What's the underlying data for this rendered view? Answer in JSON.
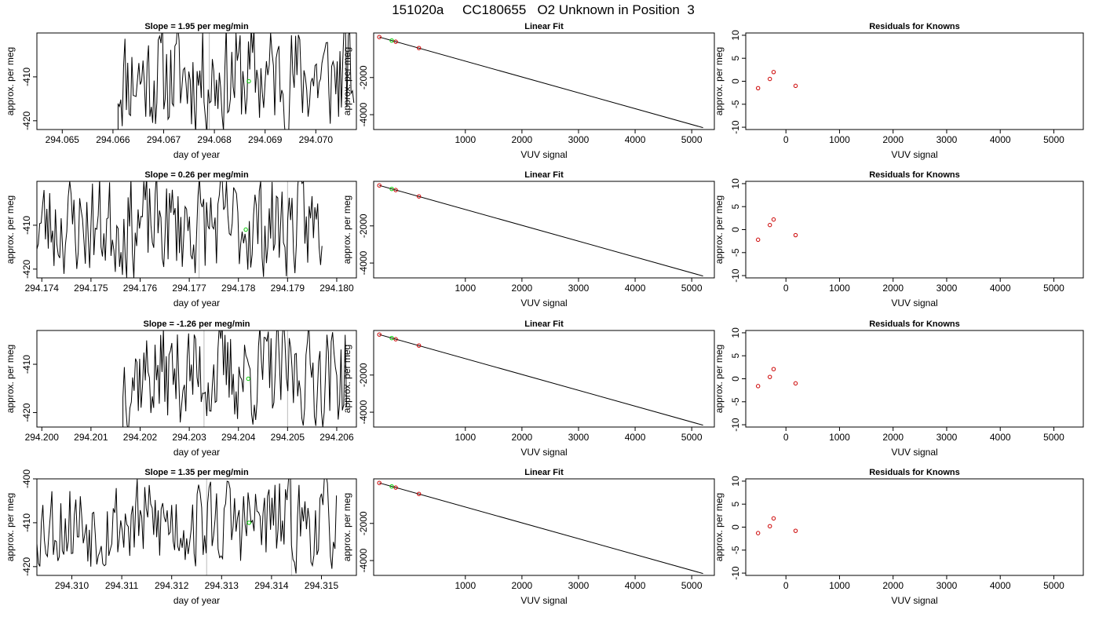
{
  "page_title": "151020a     CC180655   O2 Unknown in Position  3",
  "colors": {
    "trace": "#000000",
    "marker_green": "#00cc00",
    "marker_red": "#cc0000",
    "vline": "#bbbbbb"
  },
  "chart_data": [
    {
      "type": "line",
      "row": 1,
      "col": 1,
      "title": "Slope =  1.95  per meg/min",
      "xlabel": "day of year",
      "ylabel": "approx. per meg",
      "xlim": [
        294.0645,
        294.0708
      ],
      "ylim": [
        -422,
        -400
      ],
      "xticks": [
        "294.065",
        "294.066",
        "294.067",
        "294.068",
        "294.069",
        "294.070"
      ],
      "yticks": [
        "-410",
        "-420"
      ],
      "trace": {
        "x_start": 294.0661,
        "x_end": 294.07075,
        "n": 170,
        "y_left": -423,
        "mean": -410,
        "amp": 12,
        "seed": 11
      },
      "vlines": [
        294.0679
      ],
      "points": [
        {
          "x": 294.06868,
          "y": -411,
          "color": "green"
        }
      ]
    },
    {
      "type": "scatter",
      "row": 1,
      "col": 2,
      "title": "Linear Fit",
      "xlabel": "VUV signal",
      "ylabel": "approx. per meg",
      "xlim": [
        -620,
        5400
      ],
      "ylim": [
        -4800,
        400
      ],
      "xticks": [
        "1000",
        "2000",
        "3000",
        "4000",
        "5000"
      ],
      "yticks": [
        "-2000",
        "-4000"
      ],
      "fit_line": [
        [
          -520,
          180
        ],
        [
          5200,
          -4700
        ]
      ],
      "points": [
        {
          "x": -520,
          "y": 180,
          "color": "red"
        },
        {
          "x": -300,
          "y": -10,
          "color": "green"
        },
        {
          "x": -230,
          "y": -70,
          "color": "red"
        },
        {
          "x": 180,
          "y": -410,
          "color": "red"
        }
      ]
    },
    {
      "type": "scatter",
      "row": 1,
      "col": 3,
      "title": "Residuals for Knowns",
      "xlabel": "VUV signal",
      "ylabel": "approx. per meg",
      "xlim": [
        -750,
        5550
      ],
      "ylim": [
        -10.5,
        10.5
      ],
      "xticks": [
        "0",
        "1000",
        "2000",
        "3000",
        "4000",
        "5000"
      ],
      "yticks": [
        "10",
        "5",
        "0",
        "-5",
        "-10"
      ],
      "points": [
        {
          "x": -520,
          "y": -1.5,
          "color": "red"
        },
        {
          "x": -300,
          "y": 0.5,
          "color": "red"
        },
        {
          "x": -230,
          "y": 2.0,
          "color": "red"
        },
        {
          "x": 180,
          "y": -1.0,
          "color": "red"
        }
      ]
    },
    {
      "type": "line",
      "row": 2,
      "col": 1,
      "title": "Slope =  0.26  per meg/min",
      "xlabel": "day of year",
      "ylabel": "approx. per meg",
      "xlim": [
        294.1739,
        294.1804
      ],
      "ylim": [
        -422,
        -400
      ],
      "xticks": [
        "294.174",
        "294.175",
        "294.176",
        "294.177",
        "294.178",
        "294.179",
        "294.180"
      ],
      "yticks": [
        "-410",
        "-420"
      ],
      "trace": {
        "x_start": 294.1739,
        "x_end": 294.1797,
        "n": 200,
        "y_left": -418,
        "mean": -410,
        "amp": 11,
        "seed": 23
      },
      "vlines": [
        294.1772,
        294.179
      ],
      "points": [
        {
          "x": 294.17815,
          "y": -411,
          "color": "green"
        }
      ]
    },
    {
      "type": "scatter",
      "row": 2,
      "col": 2,
      "title": "Linear Fit",
      "xlabel": "VUV signal",
      "ylabel": "approx. per meg",
      "xlim": [
        -620,
        5400
      ],
      "ylim": [
        -4800,
        400
      ],
      "xticks": [
        "1000",
        "2000",
        "3000",
        "4000",
        "5000"
      ],
      "yticks": [
        "-2000",
        "-4000"
      ],
      "fit_line": [
        [
          -520,
          180
        ],
        [
          5200,
          -4700
        ]
      ],
      "points": [
        {
          "x": -520,
          "y": 180,
          "color": "red"
        },
        {
          "x": -300,
          "y": -10,
          "color": "green"
        },
        {
          "x": -230,
          "y": -70,
          "color": "red"
        },
        {
          "x": 180,
          "y": -410,
          "color": "red"
        }
      ]
    },
    {
      "type": "scatter",
      "row": 2,
      "col": 3,
      "title": "Residuals for Knowns",
      "xlabel": "VUV signal",
      "ylabel": "approx. per meg",
      "xlim": [
        -750,
        5550
      ],
      "ylim": [
        -10.5,
        10.5
      ],
      "xticks": [
        "0",
        "1000",
        "2000",
        "3000",
        "4000",
        "5000"
      ],
      "yticks": [
        "10",
        "5",
        "0",
        "-5",
        "-10"
      ],
      "points": [
        {
          "x": -520,
          "y": -2.2,
          "color": "red"
        },
        {
          "x": -300,
          "y": 1.0,
          "color": "red"
        },
        {
          "x": -230,
          "y": 2.2,
          "color": "red"
        },
        {
          "x": 180,
          "y": -1.2,
          "color": "red"
        }
      ]
    },
    {
      "type": "line",
      "row": 3,
      "col": 1,
      "title": "Slope =  -1.26  per meg/min",
      "xlabel": "day of year",
      "ylabel": "approx. per meg",
      "xlim": [
        294.1999,
        294.2064
      ],
      "ylim": [
        -423,
        -403
      ],
      "xticks": [
        "294.200",
        "294.201",
        "294.202",
        "294.203",
        "294.204",
        "294.205",
        "294.206"
      ],
      "yticks": [
        "-410",
        "-420"
      ],
      "trace": {
        "x_start": 294.20165,
        "x_end": 294.2062,
        "n": 160,
        "y_left": -424,
        "mean": -412,
        "amp": 10,
        "seed": 37
      },
      "vlines": [
        294.2033,
        294.205
      ],
      "points": [
        {
          "x": 294.2042,
          "y": -413,
          "color": "green"
        }
      ]
    },
    {
      "type": "scatter",
      "row": 3,
      "col": 2,
      "title": "Linear Fit",
      "xlabel": "VUV signal",
      "ylabel": "approx. per meg",
      "xlim": [
        -620,
        5400
      ],
      "ylim": [
        -4800,
        400
      ],
      "xticks": [
        "1000",
        "2000",
        "3000",
        "4000",
        "5000"
      ],
      "yticks": [
        "-2000",
        "-4000"
      ],
      "fit_line": [
        [
          -520,
          180
        ],
        [
          5200,
          -4700
        ]
      ],
      "points": [
        {
          "x": -520,
          "y": 180,
          "color": "red"
        },
        {
          "x": -300,
          "y": -10,
          "color": "green"
        },
        {
          "x": -230,
          "y": -70,
          "color": "red"
        },
        {
          "x": 180,
          "y": -410,
          "color": "red"
        }
      ]
    },
    {
      "type": "scatter",
      "row": 3,
      "col": 3,
      "title": "Residuals for Knowns",
      "xlabel": "VUV signal",
      "ylabel": "approx. per meg",
      "xlim": [
        -750,
        5550
      ],
      "ylim": [
        -10.5,
        10.5
      ],
      "xticks": [
        "0",
        "1000",
        "2000",
        "3000",
        "4000",
        "5000"
      ],
      "yticks": [
        "10",
        "5",
        "0",
        "-5",
        "-10"
      ],
      "points": [
        {
          "x": -520,
          "y": -1.6,
          "color": "red"
        },
        {
          "x": -300,
          "y": 0.4,
          "color": "red"
        },
        {
          "x": -230,
          "y": 2.1,
          "color": "red"
        },
        {
          "x": 180,
          "y": -1.0,
          "color": "red"
        }
      ]
    },
    {
      "type": "line",
      "row": 4,
      "col": 1,
      "title": "Slope =  1.35  per meg/min",
      "xlabel": "day of year",
      "ylabel": "approx. per meg",
      "xlim": [
        294.3093,
        294.3157
      ],
      "ylim": [
        -422,
        -400
      ],
      "xticks": [
        "294.310",
        "294.311",
        "294.312",
        "294.313",
        "294.314",
        "294.315"
      ],
      "yticks": [
        "-400",
        "-410",
        "-420"
      ],
      "trace": {
        "x_start": 294.3093,
        "x_end": 294.3153,
        "n": 200,
        "y_left": -417,
        "mean": -410,
        "amp": 10,
        "seed": 53
      },
      "vlines": [
        294.3127,
        294.3144
      ],
      "points": [
        {
          "x": 294.31355,
          "y": -410,
          "color": "green"
        }
      ]
    },
    {
      "type": "scatter",
      "row": 4,
      "col": 2,
      "title": "Linear Fit",
      "xlabel": "VUV signal",
      "ylabel": "approx. per meg",
      "xlim": [
        -620,
        5400
      ],
      "ylim": [
        -4800,
        400
      ],
      "xticks": [
        "1000",
        "2000",
        "3000",
        "4000",
        "5000"
      ],
      "yticks": [
        "-2000",
        "-4000"
      ],
      "fit_line": [
        [
          -520,
          180
        ],
        [
          5200,
          -4700
        ]
      ],
      "points": [
        {
          "x": -520,
          "y": 180,
          "color": "red"
        },
        {
          "x": -300,
          "y": -10,
          "color": "green"
        },
        {
          "x": -230,
          "y": -70,
          "color": "red"
        },
        {
          "x": 180,
          "y": -410,
          "color": "red"
        }
      ]
    },
    {
      "type": "scatter",
      "row": 4,
      "col": 3,
      "title": "Residuals for Knowns",
      "xlabel": "VUV signal",
      "ylabel": "approx. per meg",
      "xlim": [
        -750,
        5550
      ],
      "ylim": [
        -10.5,
        10.5
      ],
      "xticks": [
        "0",
        "1000",
        "2000",
        "3000",
        "4000",
        "5000"
      ],
      "yticks": [
        "10",
        "5",
        "0",
        "-5",
        "-10"
      ],
      "points": [
        {
          "x": -520,
          "y": -1.3,
          "color": "red"
        },
        {
          "x": -300,
          "y": 0.2,
          "color": "red"
        },
        {
          "x": -230,
          "y": 1.9,
          "color": "red"
        },
        {
          "x": 180,
          "y": -0.8,
          "color": "red"
        }
      ]
    }
  ]
}
